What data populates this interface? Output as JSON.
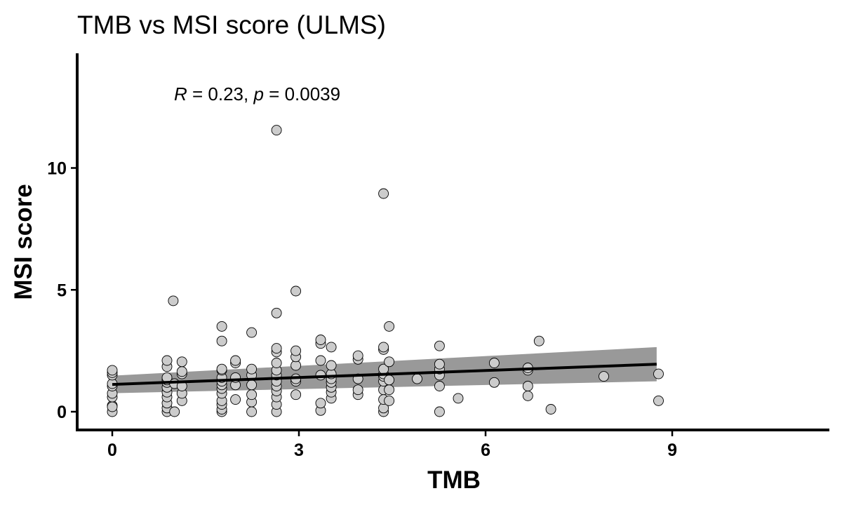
{
  "chart_data": {
    "type": "scatter",
    "title": "TMB vs MSI score (ULMS)",
    "xlabel": "TMB",
    "ylabel": "MSI score",
    "xlim": [
      -0.5,
      11.5
    ],
    "ylim": [
      -0.7,
      14.5
    ],
    "x_ticks": [
      0,
      3,
      6,
      9
    ],
    "x_tick_labels": [
      "0",
      "3",
      "6",
      "9"
    ],
    "y_ticks": [
      0,
      5,
      10
    ],
    "y_tick_labels": [
      "0",
      "5",
      "10"
    ],
    "grid": false,
    "legend": "none",
    "point_fill": "#cccccc",
    "point_stroke": "#000000",
    "line_color": "#000000",
    "band_color": "#999999",
    "annotation": {
      "r_symbol": "R",
      "r_text": " = 0.23, ",
      "p_symbol": "p",
      "p_text": " = 0.0039",
      "x": 1.0,
      "y": 13.0
    },
    "regression": {
      "x": [
        0,
        8.75
      ],
      "y": [
        1.12,
        1.95
      ]
    },
    "confidence_band": {
      "x": [
        0,
        8.75
      ],
      "upper": [
        1.48,
        2.65
      ],
      "lower": [
        0.76,
        1.25
      ]
    },
    "points": [
      {
        "x": 0,
        "y": 0.0
      },
      {
        "x": 0,
        "y": 0.25
      },
      {
        "x": 0,
        "y": 0.2
      },
      {
        "x": 0,
        "y": 0.6
      },
      {
        "x": 0,
        "y": 0.75
      },
      {
        "x": 0,
        "y": 1.05
      },
      {
        "x": 0,
        "y": 1.15
      },
      {
        "x": 0,
        "y": 1.5
      },
      {
        "x": 0,
        "y": 1.6
      },
      {
        "x": 0,
        "y": 1.7
      },
      {
        "x": 0.88,
        "y": 0.0
      },
      {
        "x": 0.88,
        "y": 0.15
      },
      {
        "x": 0.88,
        "y": 0.35
      },
      {
        "x": 0.88,
        "y": 0.6
      },
      {
        "x": 0.88,
        "y": 0.8
      },
      {
        "x": 0.88,
        "y": 1.0
      },
      {
        "x": 0.88,
        "y": 1.2
      },
      {
        "x": 0.88,
        "y": 1.3
      },
      {
        "x": 0.88,
        "y": 1.4
      },
      {
        "x": 0.88,
        "y": 1.85
      },
      {
        "x": 0.88,
        "y": 2.1
      },
      {
        "x": 0.98,
        "y": 4.55
      },
      {
        "x": 1.0,
        "y": 0.0
      },
      {
        "x": 1.0,
        "y": 1.15
      },
      {
        "x": 1.12,
        "y": 0.45
      },
      {
        "x": 1.12,
        "y": 0.75
      },
      {
        "x": 1.12,
        "y": 1.05
      },
      {
        "x": 1.12,
        "y": 1.55
      },
      {
        "x": 1.12,
        "y": 1.65
      },
      {
        "x": 1.12,
        "y": 2.05
      },
      {
        "x": 1.76,
        "y": 0.0
      },
      {
        "x": 1.76,
        "y": 0.1
      },
      {
        "x": 1.76,
        "y": 0.3
      },
      {
        "x": 1.76,
        "y": 0.45
      },
      {
        "x": 1.76,
        "y": 0.75
      },
      {
        "x": 1.76,
        "y": 0.95
      },
      {
        "x": 1.76,
        "y": 1.1
      },
      {
        "x": 1.76,
        "y": 1.25
      },
      {
        "x": 1.76,
        "y": 1.4
      },
      {
        "x": 1.76,
        "y": 1.7
      },
      {
        "x": 1.76,
        "y": 1.75
      },
      {
        "x": 1.76,
        "y": 2.9
      },
      {
        "x": 1.76,
        "y": 3.5
      },
      {
        "x": 1.98,
        "y": 0.5
      },
      {
        "x": 1.98,
        "y": 1.1
      },
      {
        "x": 1.98,
        "y": 1.4
      },
      {
        "x": 1.98,
        "y": 2.0
      },
      {
        "x": 1.98,
        "y": 2.1
      },
      {
        "x": 2.24,
        "y": 0.0
      },
      {
        "x": 2.24,
        "y": 0.4
      },
      {
        "x": 2.24,
        "y": 0.7
      },
      {
        "x": 2.24,
        "y": 1.1
      },
      {
        "x": 2.24,
        "y": 1.5
      },
      {
        "x": 2.24,
        "y": 1.75
      },
      {
        "x": 2.24,
        "y": 3.25
      },
      {
        "x": 2.64,
        "y": 0.0
      },
      {
        "x": 2.64,
        "y": 0.3
      },
      {
        "x": 2.64,
        "y": 0.6
      },
      {
        "x": 2.64,
        "y": 0.85
      },
      {
        "x": 2.64,
        "y": 1.05
      },
      {
        "x": 2.64,
        "y": 1.25
      },
      {
        "x": 2.64,
        "y": 1.5
      },
      {
        "x": 2.64,
        "y": 1.7
      },
      {
        "x": 2.64,
        "y": 2.0
      },
      {
        "x": 2.64,
        "y": 2.45
      },
      {
        "x": 2.64,
        "y": 2.6
      },
      {
        "x": 2.64,
        "y": 4.05
      },
      {
        "x": 2.64,
        "y": 11.55
      },
      {
        "x": 2.95,
        "y": 0.7
      },
      {
        "x": 2.95,
        "y": 1.25
      },
      {
        "x": 2.95,
        "y": 1.35
      },
      {
        "x": 2.95,
        "y": 1.9
      },
      {
        "x": 2.95,
        "y": 2.25
      },
      {
        "x": 2.95,
        "y": 2.5
      },
      {
        "x": 2.95,
        "y": 4.95
      },
      {
        "x": 3.35,
        "y": 0.05
      },
      {
        "x": 3.35,
        "y": 0.35
      },
      {
        "x": 3.35,
        "y": 1.5
      },
      {
        "x": 3.35,
        "y": 2.1
      },
      {
        "x": 3.35,
        "y": 2.8
      },
      {
        "x": 3.35,
        "y": 2.95
      },
      {
        "x": 3.52,
        "y": 0.55
      },
      {
        "x": 3.52,
        "y": 0.8
      },
      {
        "x": 3.52,
        "y": 1.0
      },
      {
        "x": 3.52,
        "y": 1.2
      },
      {
        "x": 3.52,
        "y": 1.35
      },
      {
        "x": 3.52,
        "y": 1.55
      },
      {
        "x": 3.52,
        "y": 1.9
      },
      {
        "x": 3.52,
        "y": 2.65
      },
      {
        "x": 3.95,
        "y": 0.7
      },
      {
        "x": 3.95,
        "y": 0.9
      },
      {
        "x": 3.95,
        "y": 1.35
      },
      {
        "x": 3.95,
        "y": 2.15
      },
      {
        "x": 3.95,
        "y": 2.3
      },
      {
        "x": 4.36,
        "y": 0.0
      },
      {
        "x": 4.36,
        "y": 0.15
      },
      {
        "x": 4.36,
        "y": 0.5
      },
      {
        "x": 4.36,
        "y": 0.9
      },
      {
        "x": 4.36,
        "y": 1.25
      },
      {
        "x": 4.36,
        "y": 1.45
      },
      {
        "x": 4.36,
        "y": 1.55
      },
      {
        "x": 4.36,
        "y": 1.75
      },
      {
        "x": 4.36,
        "y": 2.55
      },
      {
        "x": 4.36,
        "y": 2.65
      },
      {
        "x": 4.36,
        "y": 8.95
      },
      {
        "x": 4.45,
        "y": 0.45
      },
      {
        "x": 4.45,
        "y": 0.9
      },
      {
        "x": 4.45,
        "y": 1.3
      },
      {
        "x": 4.45,
        "y": 2.05
      },
      {
        "x": 4.45,
        "y": 3.5
      },
      {
        "x": 4.9,
        "y": 1.35
      },
      {
        "x": 5.26,
        "y": 0.0
      },
      {
        "x": 5.26,
        "y": 1.05
      },
      {
        "x": 5.26,
        "y": 1.5
      },
      {
        "x": 5.26,
        "y": 1.75
      },
      {
        "x": 5.26,
        "y": 1.95
      },
      {
        "x": 5.26,
        "y": 2.7
      },
      {
        "x": 5.56,
        "y": 0.55
      },
      {
        "x": 6.14,
        "y": 1.2
      },
      {
        "x": 6.14,
        "y": 2.0
      },
      {
        "x": 6.68,
        "y": 0.65
      },
      {
        "x": 6.68,
        "y": 1.05
      },
      {
        "x": 6.68,
        "y": 1.7
      },
      {
        "x": 6.68,
        "y": 1.8
      },
      {
        "x": 7.05,
        "y": 0.1
      },
      {
        "x": 6.86,
        "y": 2.9
      },
      {
        "x": 7.9,
        "y": 1.45
      },
      {
        "x": 8.78,
        "y": 0.45
      },
      {
        "x": 8.78,
        "y": 1.55
      }
    ]
  }
}
